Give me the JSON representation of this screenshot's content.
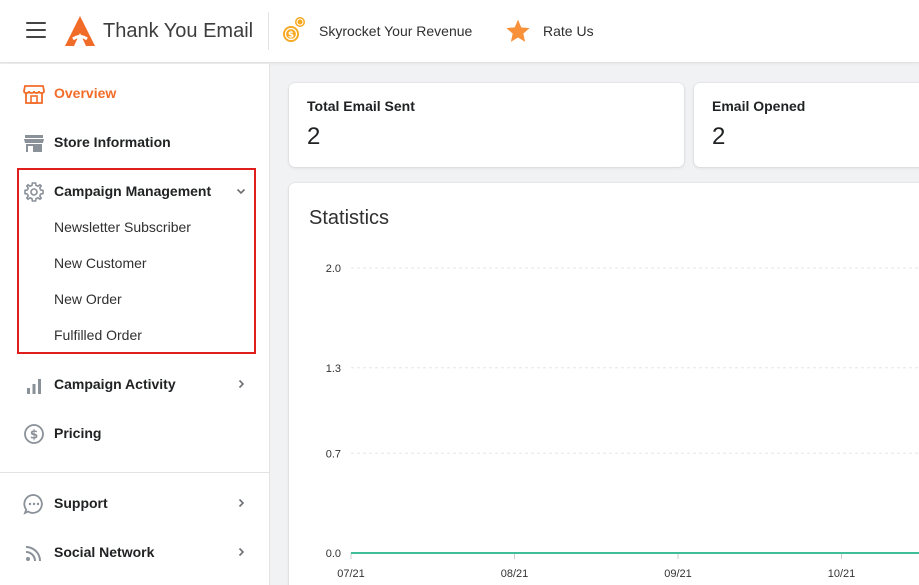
{
  "header": {
    "app_title": "Thank You Email",
    "links": [
      {
        "label": "Skyrocket Your Revenue",
        "icon": "coins-icon"
      },
      {
        "label": "Rate Us",
        "icon": "star-icon"
      }
    ]
  },
  "sidebar": {
    "items": [
      {
        "label": "Overview",
        "icon": "storefront-icon",
        "active": true
      },
      {
        "label": "Store Information",
        "icon": "store-icon"
      },
      {
        "label": "Campaign Management",
        "icon": "gear-icon",
        "expanded": true,
        "children": [
          "Newsletter Subscriber",
          "New Customer",
          "New Order",
          "Fulfilled Order"
        ]
      },
      {
        "label": "Campaign Activity",
        "icon": "bar-chart-icon"
      },
      {
        "label": "Pricing",
        "icon": "dollar-circle-icon"
      },
      {
        "label": "Support",
        "icon": "chat-bubble-icon"
      },
      {
        "label": "Social Network",
        "icon": "rss-icon"
      }
    ]
  },
  "stats": [
    {
      "title": "Total Email Sent",
      "value": "2"
    },
    {
      "title": "Email Opened",
      "value": "2"
    }
  ],
  "statistics": {
    "title": "Statistics"
  },
  "chart_data": {
    "type": "line",
    "x": [
      "07/21",
      "08/21",
      "09/21",
      "10/21"
    ],
    "series": [
      {
        "values": [
          0,
          0,
          0,
          0
        ],
        "color": "#3ebf9a"
      }
    ],
    "yticks": [
      "0.0",
      "0.7",
      "1.3",
      "2.0"
    ],
    "ylim": [
      0,
      2
    ],
    "grid": true
  },
  "colors": {
    "accent": "#f26c29",
    "highlight": "#e01e1e",
    "line": "#3ebf9a"
  }
}
